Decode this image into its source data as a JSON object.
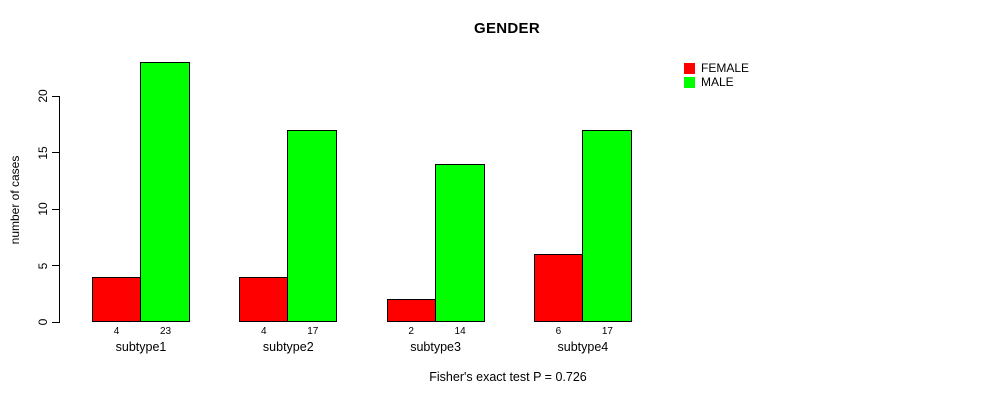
{
  "chart_data": {
    "type": "bar",
    "title": "GENDER",
    "categories": [
      "subtype1",
      "subtype2",
      "subtype3",
      "subtype4"
    ],
    "series": [
      {
        "name": "FEMALE",
        "color": "#FF0000",
        "values": [
          4,
          4,
          2,
          6
        ]
      },
      {
        "name": "MALE",
        "color": "#00FF00",
        "values": [
          23,
          17,
          14,
          17
        ]
      }
    ],
    "xlabel": "",
    "ylabel": "number of cases",
    "yticks": [
      0,
      5,
      10,
      15,
      20
    ],
    "ylim": [
      0,
      23.5
    ],
    "bar_value_labels": [
      [
        "4",
        "23"
      ],
      [
        "4",
        "17"
      ],
      [
        "2",
        "14"
      ],
      [
        "6",
        "17"
      ]
    ],
    "annotation": "Fisher's exact test P = 0.726",
    "legend_position": "top-right",
    "grid": false,
    "background": "#ffffff",
    "axis_color": "#000000"
  }
}
